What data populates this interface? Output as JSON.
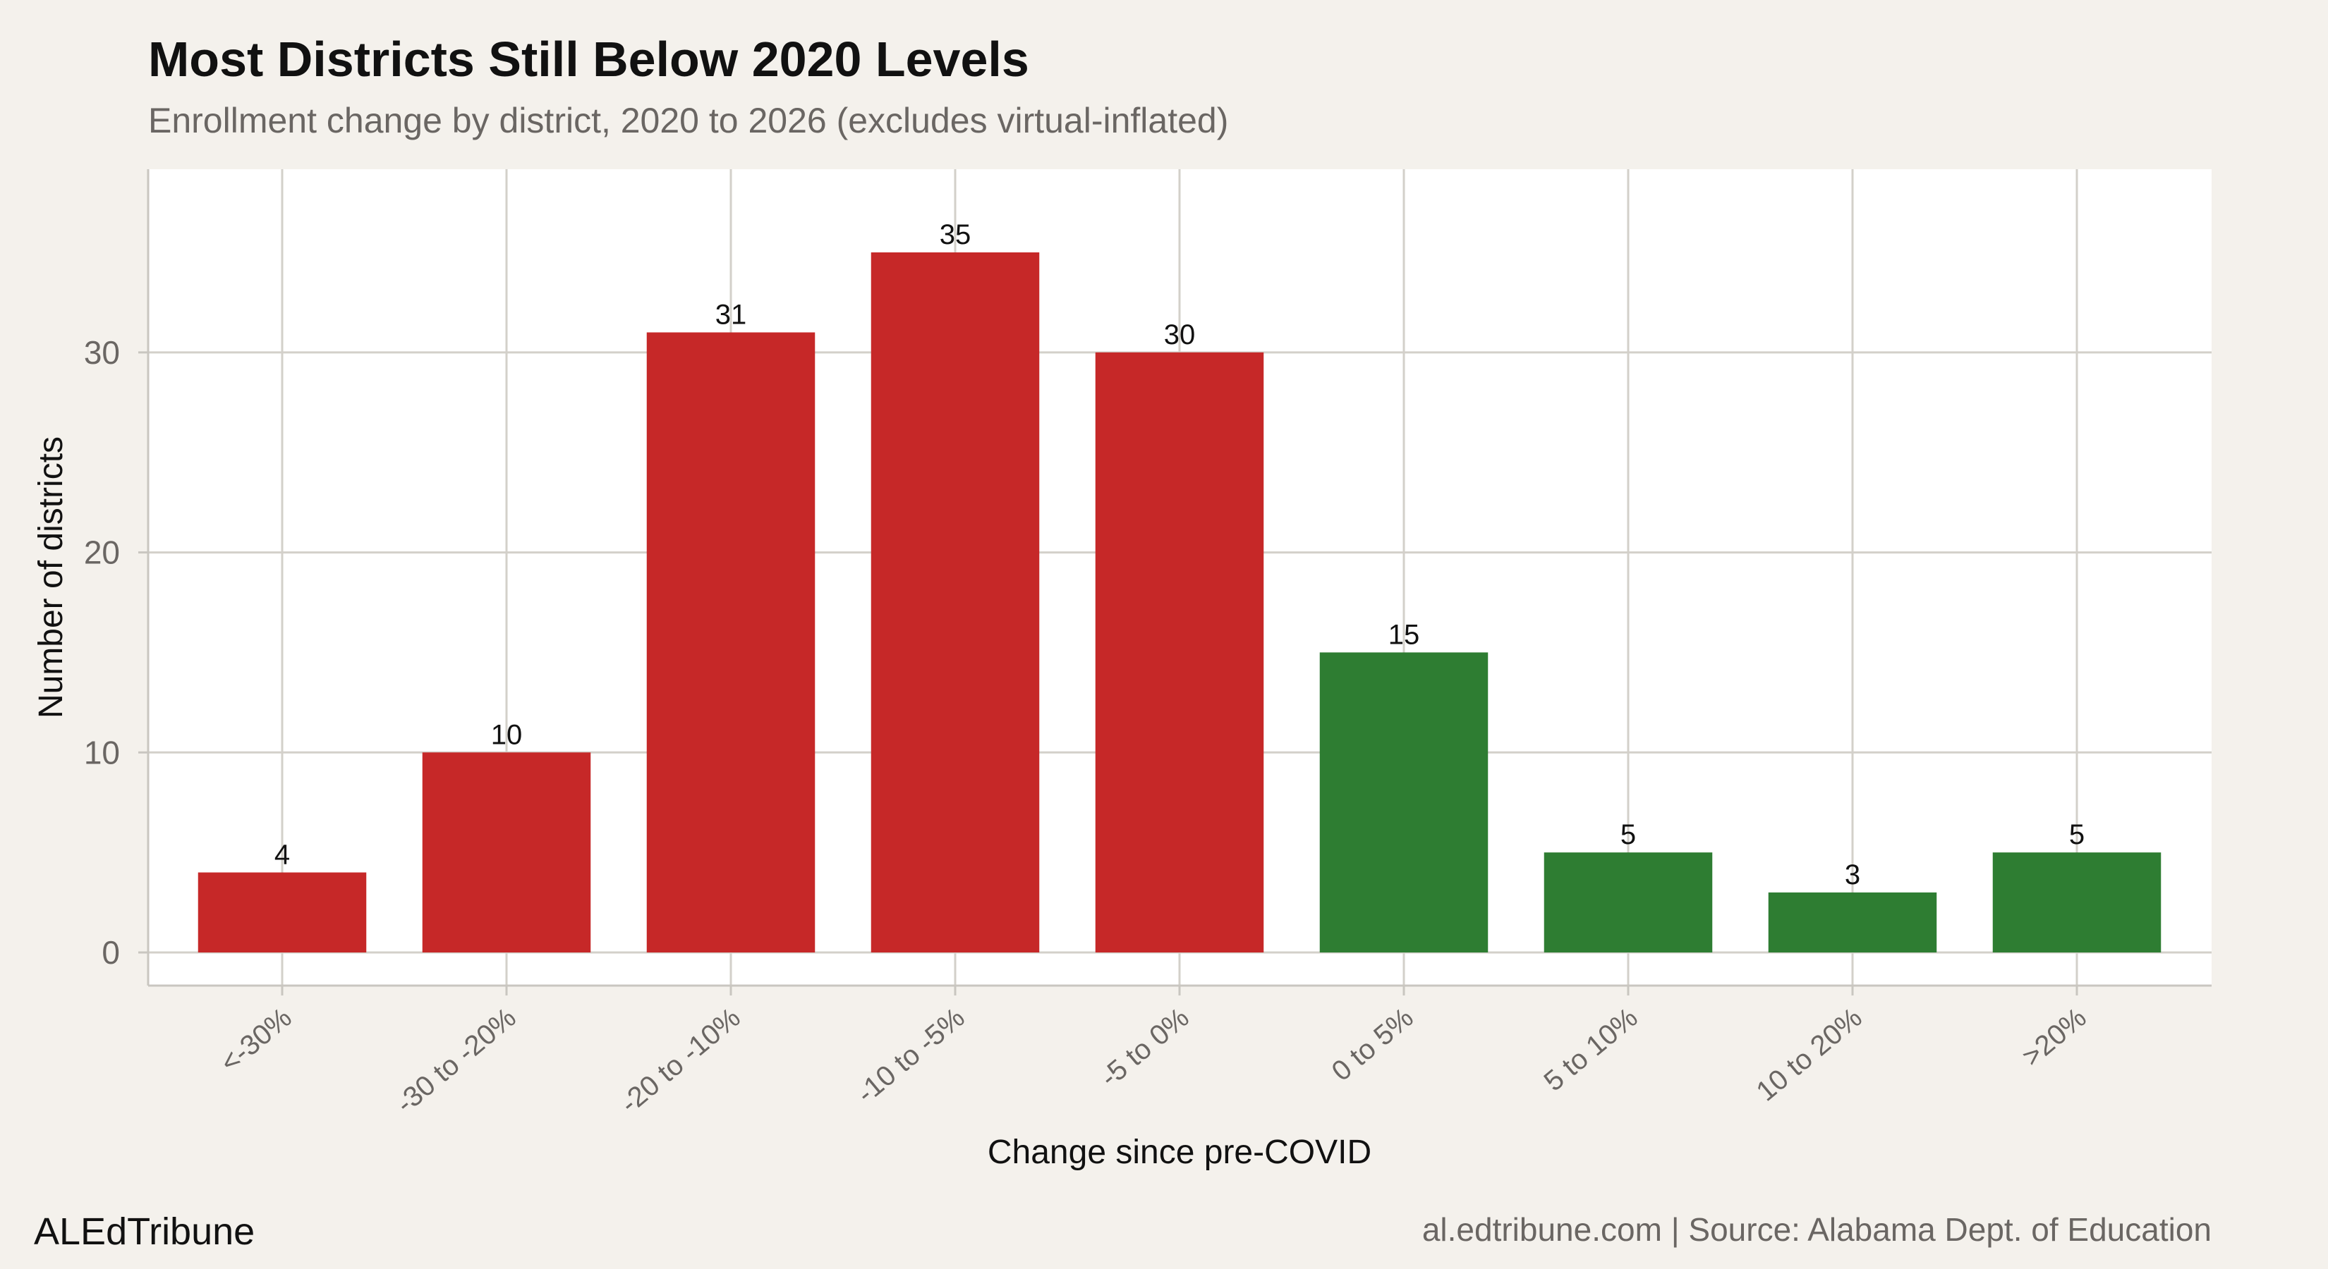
{
  "chart_data": {
    "type": "bar",
    "title": "Most Districts Still Below 2020 Levels",
    "subtitle": "Enrollment change by district, 2020 to 2026 (excludes virtual-inflated)",
    "xlabel": "Change since pre-COVID",
    "ylabel": "Number of districts",
    "categories": [
      "<-30%",
      "-30 to -20%",
      "-20 to -10%",
      "-10 to -5%",
      "-5 to 0%",
      "0 to 5%",
      "5 to 10%",
      "10 to 20%",
      ">20%"
    ],
    "values": [
      4,
      10,
      31,
      35,
      30,
      15,
      5,
      3,
      5
    ],
    "colors": [
      "#c62828",
      "#c62828",
      "#c62828",
      "#c62828",
      "#c62828",
      "#2e7d32",
      "#2e7d32",
      "#2e7d32",
      "#2e7d32"
    ],
    "yticks": [
      0,
      10,
      20,
      30
    ],
    "ylim": [
      0,
      38
    ],
    "grid": true,
    "negative_color": "#c62828",
    "positive_color": "#2e7d32"
  },
  "footer": {
    "brand": "ALEdTribune",
    "source": "al.edtribune.com | Source: Alabama Dept. of Education"
  }
}
